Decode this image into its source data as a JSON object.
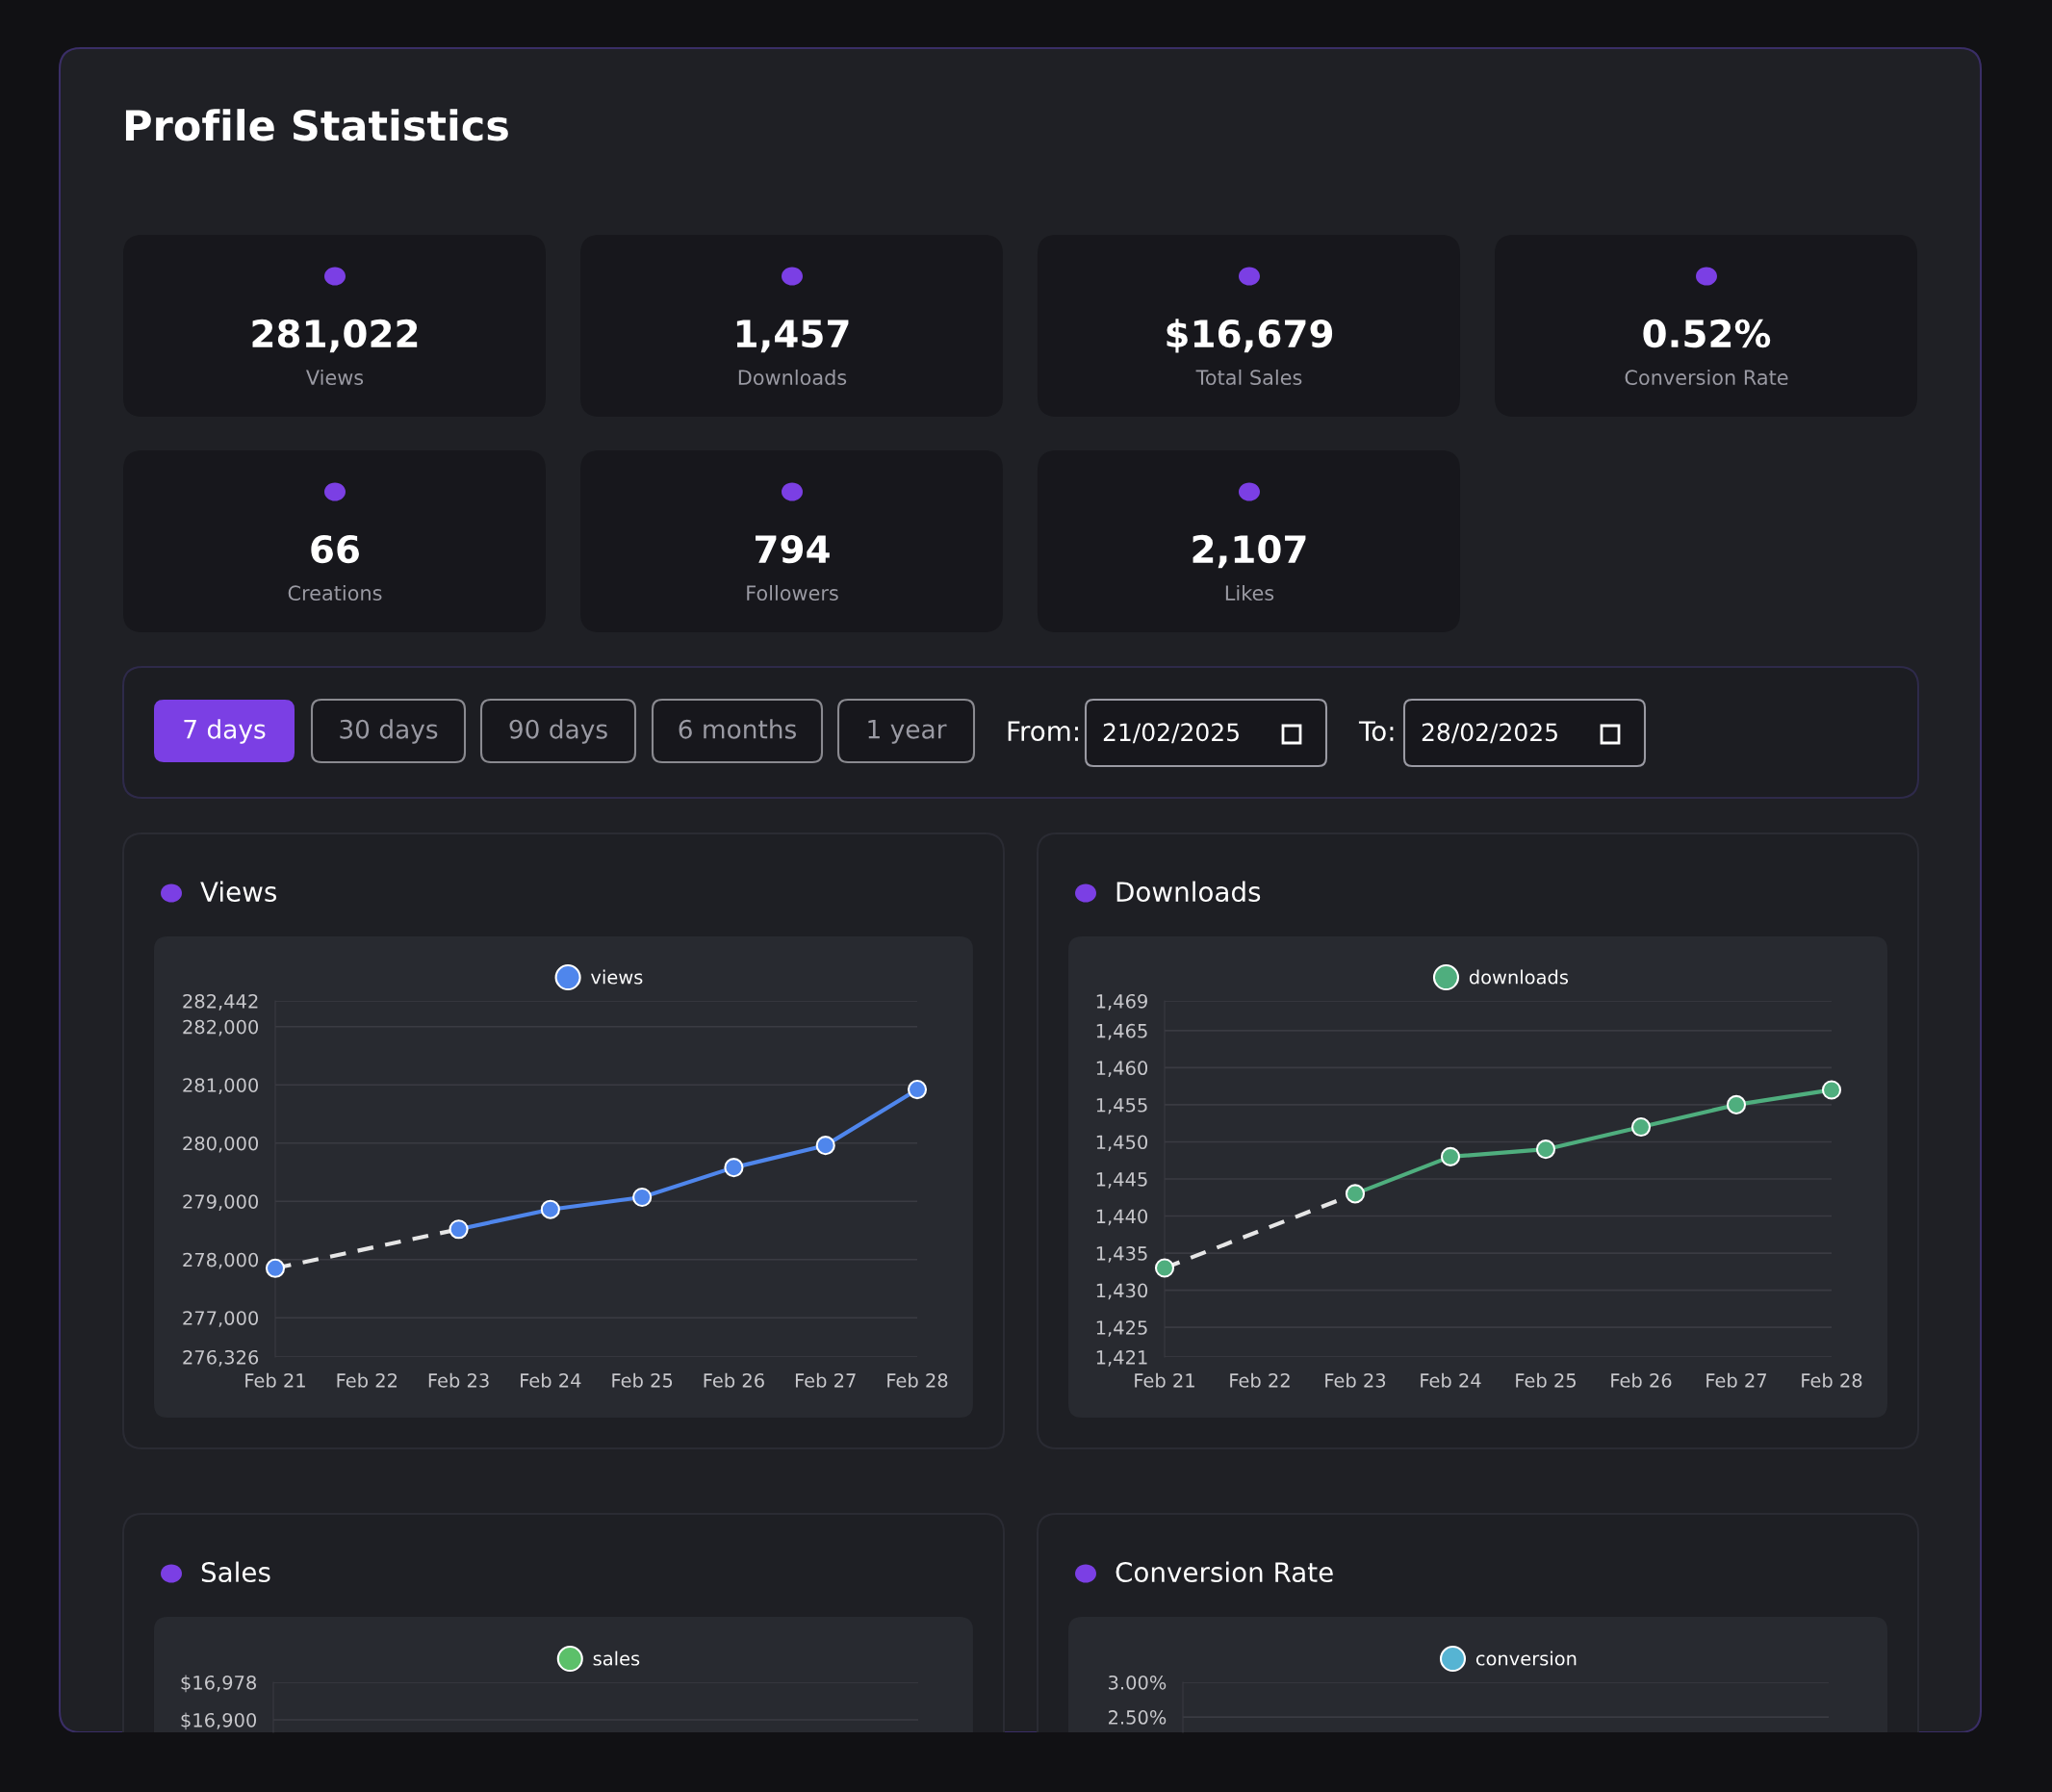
{
  "chart_data": [
    {
      "type": "other",
      "title": "Profile Statistics",
      "annotations": [
        "281,022",
        "Views",
        "1,457",
        "Downloads",
        "$16,679",
        "Total Sales",
        "0.52%",
        "Conversion Rate",
        "66",
        "Creations",
        "794",
        "Followers",
        "2,107",
        "Likes",
        "7 days",
        "30 days",
        "90 days",
        "6 months",
        "1 year",
        "From:",
        "21/02/2025",
        "To:",
        "28/02/2025"
      ]
    },
    {
      "type": "line",
      "title": "Views",
      "categories": [
        "Feb 21",
        "Feb 22",
        "Feb 23",
        "Feb 24",
        "Feb 25",
        "Feb 26",
        "Feb 27",
        "Feb 28"
      ],
      "series": [
        {
          "color": "#e6e6e6",
          "line_style": "dashed",
          "marker": "none",
          "values": [
            277850,
            null,
            278520,
            null,
            null,
            null,
            null,
            null
          ]
        },
        {
          "name": "views",
          "color": "#4f86ec",
          "line_style": "solid",
          "marker": "circle",
          "values": [
            277850,
            null,
            278520,
            278860,
            279070,
            279580,
            279960,
            280920
          ]
        }
      ],
      "ylim": [
        276326,
        282442
      ],
      "yticks": [
        {
          "value": 276326,
          "label": "276,326"
        },
        {
          "value": 277000,
          "label": "277,000"
        },
        {
          "value": 278000,
          "label": "278,000"
        },
        {
          "value": 279000,
          "label": "279,000"
        },
        {
          "value": 280000,
          "label": "280,000"
        },
        {
          "value": 281000,
          "label": "281,000"
        },
        {
          "value": 282000,
          "label": "282,000"
        },
        {
          "value": 282442,
          "label": "282,442"
        }
      ],
      "grid": "y",
      "legend": "top"
    },
    {
      "type": "line",
      "title": "Downloads",
      "categories": [
        "Feb 21",
        "Feb 22",
        "Feb 23",
        "Feb 24",
        "Feb 25",
        "Feb 26",
        "Feb 27",
        "Feb 28"
      ],
      "series": [
        {
          "color": "#e6e6e6",
          "line_style": "dashed",
          "marker": "none",
          "values": [
            1433,
            null,
            1443,
            null,
            null,
            null,
            null,
            null
          ]
        },
        {
          "name": "downloads",
          "color": "#4fae7e",
          "line_style": "solid",
          "marker": "circle",
          "values": [
            1433,
            null,
            1443,
            1448,
            1449,
            1452,
            1455,
            1457
          ]
        }
      ],
      "ylim": [
        1421,
        1469
      ],
      "yticks": [
        {
          "value": 1421,
          "label": "1,421"
        },
        {
          "value": 1425,
          "label": "1,425"
        },
        {
          "value": 1430,
          "label": "1,430"
        },
        {
          "value": 1435,
          "label": "1,435"
        },
        {
          "value": 1440,
          "label": "1,440"
        },
        {
          "value": 1445,
          "label": "1,445"
        },
        {
          "value": 1450,
          "label": "1,450"
        },
        {
          "value": 1455,
          "label": "1,455"
        },
        {
          "value": 1460,
          "label": "1,460"
        },
        {
          "value": 1465,
          "label": "1,465"
        },
        {
          "value": 1469,
          "label": "1,469"
        }
      ],
      "grid": "y",
      "legend": "top"
    },
    {
      "type": "line",
      "title": "Sales",
      "series": [
        {
          "name": "sales",
          "color": "#5cc06a"
        }
      ],
      "ylim": [
        16874,
        16978
      ],
      "yticks": [
        {
          "value": 16900,
          "label": "$16,900"
        },
        {
          "value": 16978,
          "label": "$16,978"
        }
      ],
      "grid": "y",
      "legend": "top",
      "tick_labels": "y"
    },
    {
      "type": "line",
      "title": "Conversion Rate",
      "series": [
        {
          "name": "conversion",
          "color": "#56b4d3"
        }
      ],
      "ylim": [
        2.28,
        3.0
      ],
      "yticks": [
        {
          "value": 2.5,
          "label": "2.50%"
        },
        {
          "value": 3.0,
          "label": "3.00%"
        }
      ],
      "grid": "y",
      "legend": "top",
      "tick_labels": "y"
    }
  ]
}
